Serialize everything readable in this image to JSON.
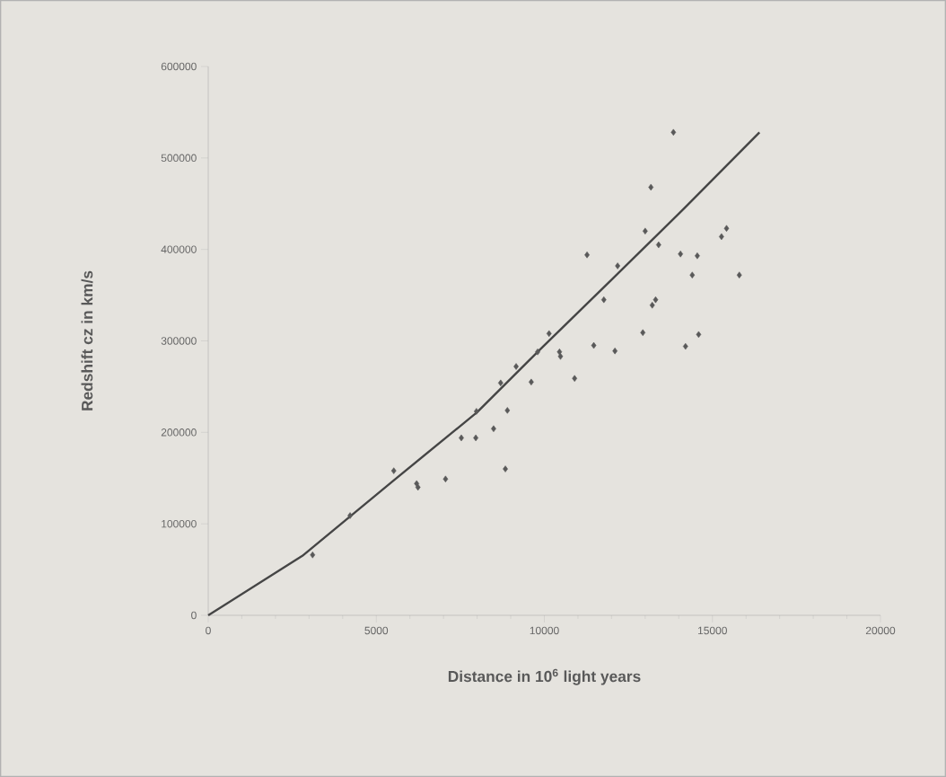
{
  "chart_data": {
    "type": "scatter",
    "xlabel": "Distance in 10$^{6}$ light years",
    "ylabel": "Redshift cz in km/s",
    "xlim": [
      0,
      20000
    ],
    "ylim": [
      0,
      600000
    ],
    "xticks": [
      0,
      5000,
      10000,
      15000,
      20000
    ],
    "yticks": [
      0,
      100000,
      200000,
      300000,
      400000,
      500000,
      600000
    ],
    "grid": false,
    "series": [
      {
        "marker": "diamond",
        "color": "#595959",
        "x": [
          3105,
          4220,
          5520,
          6200,
          6240,
          7060,
          7530,
          7960,
          7980,
          8490,
          8700,
          8840,
          8900,
          9160,
          9610,
          9800,
          10140,
          10450,
          10480,
          10900,
          11270,
          11470,
          11770,
          12100,
          12180,
          12930,
          13000,
          13170,
          13210,
          13310,
          13400,
          13840,
          14050,
          14200,
          14400,
          14550,
          14590,
          15270,
          15420,
          15800
        ],
        "values": [
          66000,
          109000,
          158000,
          144000,
          140000,
          149000,
          194000,
          194000,
          223000,
          204000,
          254000,
          160000,
          224000,
          272000,
          255000,
          288000,
          308000,
          288000,
          283000,
          259000,
          394000,
          295000,
          345000,
          289000,
          382000,
          309000,
          420000,
          468000,
          339000,
          345000,
          405000,
          528000,
          395000,
          294000,
          372000,
          393000,
          307000,
          414000,
          423000,
          372000
        ]
      },
      {
        "type": "line",
        "marker": "none",
        "line_style": "solid",
        "color": "#454545",
        "x": [
          0,
          2800,
          5500,
          8000,
          9830,
          12000,
          14000,
          16400
        ],
        "values": [
          0,
          65000,
          147000,
          222000,
          289000,
          367000,
          439000,
          528000
        ]
      }
    ]
  }
}
